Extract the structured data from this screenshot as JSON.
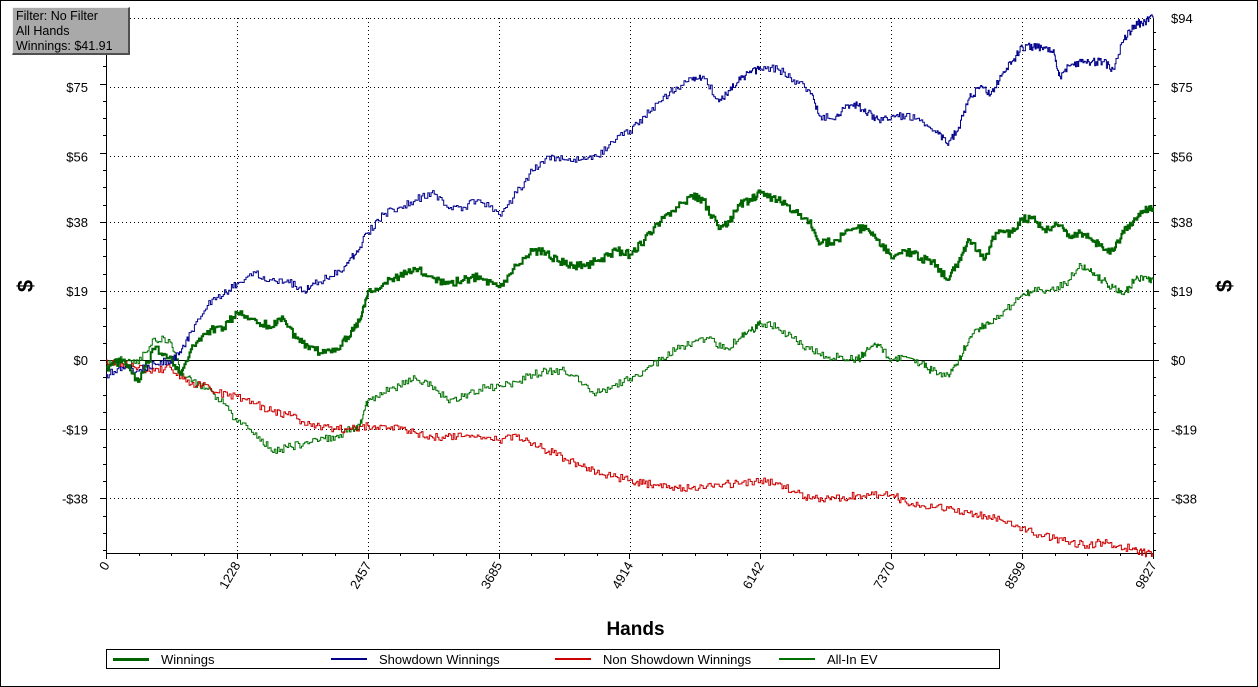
{
  "info_box": {
    "filter": "Filter: No Filter",
    "hands": "All Hands",
    "winnings": "Winnings: $41.91"
  },
  "chart_data": {
    "type": "line",
    "title": "",
    "xlabel": "Hands",
    "ylabel": "$",
    "xlim": [
      0,
      9827
    ],
    "ylim": [
      -53,
      94
    ],
    "x_ticks": [
      0,
      1228,
      2457,
      3685,
      4914,
      6142,
      7370,
      8599,
      9827
    ],
    "x_tick_labels": [
      "0",
      "1228",
      "2457",
      "3685",
      "4914",
      "6142",
      "7370",
      "8599",
      "9827"
    ],
    "y_ticks": [
      94,
      75,
      56,
      38,
      19,
      0,
      -19,
      -38
    ],
    "y_tick_labels": [
      "$94",
      "$75",
      "$56",
      "$38",
      "$19",
      "$0",
      "-$19",
      "-$38"
    ],
    "zero_line": true,
    "grid": "dotted",
    "legend": "bottom",
    "series": [
      {
        "name": "Winnings",
        "color": "#006400",
        "width": 2,
        "points": [
          [
            0,
            -2
          ],
          [
            150,
            0
          ],
          [
            300,
            -6
          ],
          [
            450,
            3
          ],
          [
            600,
            1
          ],
          [
            700,
            -4
          ],
          [
            820,
            4
          ],
          [
            950,
            8
          ],
          [
            1100,
            9
          ],
          [
            1228,
            13
          ],
          [
            1400,
            11
          ],
          [
            1550,
            9
          ],
          [
            1650,
            12
          ],
          [
            1780,
            6
          ],
          [
            1900,
            3
          ],
          [
            2050,
            2
          ],
          [
            2200,
            4
          ],
          [
            2300,
            8
          ],
          [
            2380,
            11
          ],
          [
            2457,
            19
          ],
          [
            2600,
            21
          ],
          [
            2750,
            23
          ],
          [
            2900,
            25
          ],
          [
            3050,
            23
          ],
          [
            3200,
            21
          ],
          [
            3350,
            22
          ],
          [
            3500,
            23
          ],
          [
            3685,
            20
          ],
          [
            3850,
            26
          ],
          [
            4000,
            30
          ],
          [
            4100,
            30
          ],
          [
            4250,
            27
          ],
          [
            4400,
            26
          ],
          [
            4500,
            26
          ],
          [
            4650,
            28
          ],
          [
            4800,
            30
          ],
          [
            4914,
            29
          ],
          [
            5050,
            33
          ],
          [
            5200,
            38
          ],
          [
            5350,
            42
          ],
          [
            5500,
            45
          ],
          [
            5600,
            44
          ],
          [
            5750,
            36
          ],
          [
            5850,
            38
          ],
          [
            5950,
            43
          ],
          [
            6050,
            44
          ],
          [
            6142,
            46
          ],
          [
            6300,
            44
          ],
          [
            6450,
            41
          ],
          [
            6600,
            38
          ],
          [
            6700,
            32
          ],
          [
            6850,
            33
          ],
          [
            7000,
            36
          ],
          [
            7150,
            36
          ],
          [
            7250,
            33
          ],
          [
            7370,
            28
          ],
          [
            7500,
            30
          ],
          [
            7650,
            28
          ],
          [
            7750,
            27
          ],
          [
            7900,
            22
          ],
          [
            8000,
            27
          ],
          [
            8100,
            33
          ],
          [
            8250,
            28
          ],
          [
            8350,
            35
          ],
          [
            8500,
            35
          ],
          [
            8599,
            39
          ],
          [
            8700,
            39
          ],
          [
            8800,
            36
          ],
          [
            8950,
            37
          ],
          [
            9050,
            34
          ],
          [
            9150,
            35
          ],
          [
            9250,
            33
          ],
          [
            9350,
            31
          ],
          [
            9450,
            30
          ],
          [
            9550,
            35
          ],
          [
            9650,
            39
          ],
          [
            9750,
            41
          ],
          [
            9827,
            41.91
          ]
        ]
      },
      {
        "name": "Showdown Winnings",
        "color": "#00008b",
        "width": 1,
        "points": [
          [
            0,
            -4
          ],
          [
            150,
            -2
          ],
          [
            300,
            -3
          ],
          [
            450,
            -1
          ],
          [
            600,
            0
          ],
          [
            700,
            2
          ],
          [
            800,
            8
          ],
          [
            950,
            15
          ],
          [
            1100,
            18
          ],
          [
            1228,
            21
          ],
          [
            1400,
            24
          ],
          [
            1550,
            22
          ],
          [
            1700,
            22
          ],
          [
            1850,
            19
          ],
          [
            1950,
            21
          ],
          [
            2100,
            23
          ],
          [
            2250,
            26
          ],
          [
            2350,
            30
          ],
          [
            2457,
            35
          ],
          [
            2600,
            40
          ],
          [
            2750,
            42
          ],
          [
            2900,
            44
          ],
          [
            3050,
            46
          ],
          [
            3200,
            42
          ],
          [
            3350,
            42
          ],
          [
            3500,
            44
          ],
          [
            3685,
            40
          ],
          [
            3850,
            46
          ],
          [
            4000,
            52
          ],
          [
            4150,
            56
          ],
          [
            4300,
            55
          ],
          [
            4450,
            55
          ],
          [
            4600,
            56
          ],
          [
            4750,
            60
          ],
          [
            4914,
            63
          ],
          [
            5050,
            67
          ],
          [
            5200,
            71
          ],
          [
            5350,
            75
          ],
          [
            5500,
            77
          ],
          [
            5600,
            78
          ],
          [
            5750,
            71
          ],
          [
            5850,
            74
          ],
          [
            5950,
            77
          ],
          [
            6050,
            79
          ],
          [
            6142,
            80
          ],
          [
            6300,
            80
          ],
          [
            6450,
            77
          ],
          [
            6600,
            74
          ],
          [
            6700,
            67
          ],
          [
            6850,
            67
          ],
          [
            6950,
            70
          ],
          [
            7050,
            70
          ],
          [
            7150,
            68
          ],
          [
            7250,
            66
          ],
          [
            7370,
            67
          ],
          [
            7500,
            67
          ],
          [
            7650,
            66
          ],
          [
            7800,
            63
          ],
          [
            7900,
            59
          ],
          [
            8000,
            64
          ],
          [
            8100,
            72
          ],
          [
            8200,
            75
          ],
          [
            8300,
            73
          ],
          [
            8400,
            78
          ],
          [
            8500,
            82
          ],
          [
            8599,
            86
          ],
          [
            8700,
            86
          ],
          [
            8800,
            86
          ],
          [
            8900,
            84
          ],
          [
            8950,
            78
          ],
          [
            9050,
            81
          ],
          [
            9150,
            82
          ],
          [
            9250,
            82
          ],
          [
            9350,
            82
          ],
          [
            9450,
            80
          ],
          [
            9550,
            88
          ],
          [
            9650,
            92
          ],
          [
            9750,
            93
          ],
          [
            9827,
            94
          ]
        ]
      },
      {
        "name": "Non Showdown Winnings",
        "color": "#cc0000",
        "width": 1,
        "points": [
          [
            0,
            0
          ],
          [
            150,
            -1
          ],
          [
            300,
            -2
          ],
          [
            450,
            -3
          ],
          [
            600,
            -2
          ],
          [
            750,
            -6
          ],
          [
            900,
            -7
          ],
          [
            1050,
            -9
          ],
          [
            1228,
            -10
          ],
          [
            1400,
            -12
          ],
          [
            1550,
            -14
          ],
          [
            1700,
            -15
          ],
          [
            1850,
            -17
          ],
          [
            2000,
            -18
          ],
          [
            2150,
            -19
          ],
          [
            2300,
            -19
          ],
          [
            2457,
            -18
          ],
          [
            2600,
            -18
          ],
          [
            2750,
            -19
          ],
          [
            2900,
            -20
          ],
          [
            3050,
            -21
          ],
          [
            3200,
            -21
          ],
          [
            3350,
            -21
          ],
          [
            3500,
            -21
          ],
          [
            3685,
            -22
          ],
          [
            3850,
            -21
          ],
          [
            4000,
            -23
          ],
          [
            4150,
            -25
          ],
          [
            4300,
            -27
          ],
          [
            4450,
            -29
          ],
          [
            4600,
            -31
          ],
          [
            4750,
            -32
          ],
          [
            4914,
            -33
          ],
          [
            5050,
            -34
          ],
          [
            5200,
            -34
          ],
          [
            5350,
            -35
          ],
          [
            5500,
            -35
          ],
          [
            5650,
            -34
          ],
          [
            5800,
            -34
          ],
          [
            5950,
            -34
          ],
          [
            6142,
            -33
          ],
          [
            6300,
            -34
          ],
          [
            6450,
            -36
          ],
          [
            6600,
            -38
          ],
          [
            6750,
            -38
          ],
          [
            6900,
            -38
          ],
          [
            7050,
            -37
          ],
          [
            7200,
            -37
          ],
          [
            7370,
            -37
          ],
          [
            7500,
            -39
          ],
          [
            7650,
            -40
          ],
          [
            7800,
            -40
          ],
          [
            7950,
            -41
          ],
          [
            8100,
            -42
          ],
          [
            8250,
            -43
          ],
          [
            8400,
            -44
          ],
          [
            8599,
            -46
          ],
          [
            8750,
            -48
          ],
          [
            8900,
            -49
          ],
          [
            9050,
            -50
          ],
          [
            9200,
            -51
          ],
          [
            9350,
            -50
          ],
          [
            9500,
            -51
          ],
          [
            9650,
            -52
          ],
          [
            9750,
            -53
          ],
          [
            9827,
            -53
          ]
        ]
      },
      {
        "name": "All-In EV",
        "color": "#007000",
        "width": 1,
        "points": [
          [
            0,
            -1
          ],
          [
            150,
            0
          ],
          [
            300,
            -1
          ],
          [
            450,
            6
          ],
          [
            600,
            5
          ],
          [
            700,
            -3
          ],
          [
            800,
            -6
          ],
          [
            950,
            -8
          ],
          [
            1100,
            -12
          ],
          [
            1228,
            -17
          ],
          [
            1400,
            -20
          ],
          [
            1550,
            -25
          ],
          [
            1700,
            -24
          ],
          [
            1850,
            -23
          ],
          [
            2000,
            -22
          ],
          [
            2150,
            -21
          ],
          [
            2300,
            -19
          ],
          [
            2380,
            -18
          ],
          [
            2457,
            -11
          ],
          [
            2600,
            -9
          ],
          [
            2750,
            -7
          ],
          [
            2900,
            -5
          ],
          [
            3050,
            -7
          ],
          [
            3200,
            -11
          ],
          [
            3350,
            -10
          ],
          [
            3500,
            -8
          ],
          [
            3685,
            -7
          ],
          [
            3850,
            -6
          ],
          [
            4000,
            -4
          ],
          [
            4150,
            -3
          ],
          [
            4300,
            -3
          ],
          [
            4450,
            -6
          ],
          [
            4600,
            -9
          ],
          [
            4750,
            -7
          ],
          [
            4914,
            -5
          ],
          [
            5050,
            -3
          ],
          [
            5200,
            0
          ],
          [
            5350,
            3
          ],
          [
            5500,
            5
          ],
          [
            5650,
            6
          ],
          [
            5800,
            3
          ],
          [
            5950,
            6
          ],
          [
            6050,
            8
          ],
          [
            6142,
            10
          ],
          [
            6300,
            9
          ],
          [
            6450,
            6
          ],
          [
            6600,
            3
          ],
          [
            6750,
            1
          ],
          [
            6900,
            1
          ],
          [
            7050,
            0
          ],
          [
            7150,
            3
          ],
          [
            7250,
            4
          ],
          [
            7370,
            0
          ],
          [
            7500,
            1
          ],
          [
            7650,
            -1
          ],
          [
            7750,
            -3
          ],
          [
            7900,
            -4
          ],
          [
            8000,
            0
          ],
          [
            8100,
            6
          ],
          [
            8200,
            9
          ],
          [
            8300,
            10
          ],
          [
            8450,
            14
          ],
          [
            8599,
            18
          ],
          [
            8700,
            19
          ],
          [
            8850,
            19
          ],
          [
            9000,
            21
          ],
          [
            9150,
            26
          ],
          [
            9250,
            24
          ],
          [
            9350,
            22
          ],
          [
            9450,
            20
          ],
          [
            9550,
            18
          ],
          [
            9650,
            22
          ],
          [
            9750,
            23
          ],
          [
            9827,
            22
          ]
        ]
      }
    ]
  }
}
